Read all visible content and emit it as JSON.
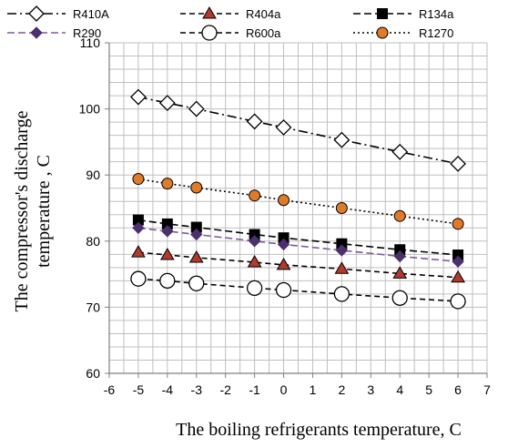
{
  "chart_data": {
    "type": "line",
    "xlabel": "The boiling refrigerants temperature, C",
    "ylabel_line1": "The compressor's discharge",
    "ylabel_line2": "temperature , C",
    "xlim": [
      -6,
      7
    ],
    "ylim": [
      60,
      110
    ],
    "xticks": [
      -6,
      -5,
      -4,
      -3,
      -2,
      -1,
      0,
      1,
      2,
      3,
      4,
      5,
      6,
      7
    ],
    "yticks": [
      60,
      70,
      80,
      90,
      100,
      110
    ],
    "grid": true,
    "legend_position": "top",
    "x": [
      -5,
      -4,
      -3,
      -1,
      0,
      2,
      4,
      6
    ],
    "series": [
      {
        "name": "R410A",
        "values": [
          101.8,
          100.9,
          100.0,
          98.1,
          97.2,
          95.3,
          93.5,
          91.7
        ],
        "color": "#000000",
        "marker": "diamond-open",
        "dash": "10,4,2,4"
      },
      {
        "name": "R404a",
        "values": [
          78.3,
          77.9,
          77.5,
          76.8,
          76.4,
          75.8,
          75.1,
          74.5
        ],
        "color": "#000000",
        "marker": "triangle-red",
        "dash": "6,4"
      },
      {
        "name": "R134a",
        "values": [
          83.2,
          82.6,
          82.1,
          81.0,
          80.5,
          79.6,
          78.7,
          77.9
        ],
        "color": "#000000",
        "marker": "square-filled",
        "dash": "8,4"
      },
      {
        "name": "R290",
        "values": [
          82.0,
          81.5,
          81.0,
          80.0,
          79.5,
          78.6,
          77.7,
          76.9
        ],
        "color": "#7b5c9b",
        "marker": "diamond-filled",
        "dash": "8,4"
      },
      {
        "name": "R600a",
        "values": [
          74.3,
          74.0,
          73.6,
          72.9,
          72.6,
          72.0,
          71.4,
          70.9
        ],
        "color": "#000000",
        "marker": "circle-open",
        "dash": "6,4"
      },
      {
        "name": "R1270",
        "values": [
          89.4,
          88.7,
          88.1,
          86.9,
          86.2,
          85.0,
          83.8,
          82.6
        ],
        "color": "#000000",
        "marker": "circle-orange",
        "dash": "2,3"
      }
    ]
  },
  "colors": {
    "grid": "#bfbfbf",
    "axis": "#808080",
    "triangle_fill": "#b03a2e",
    "circle_orange_fill": "#e07b2a",
    "r290_line": "#7b5c9b",
    "r290_marker": "#4b2f6e"
  }
}
